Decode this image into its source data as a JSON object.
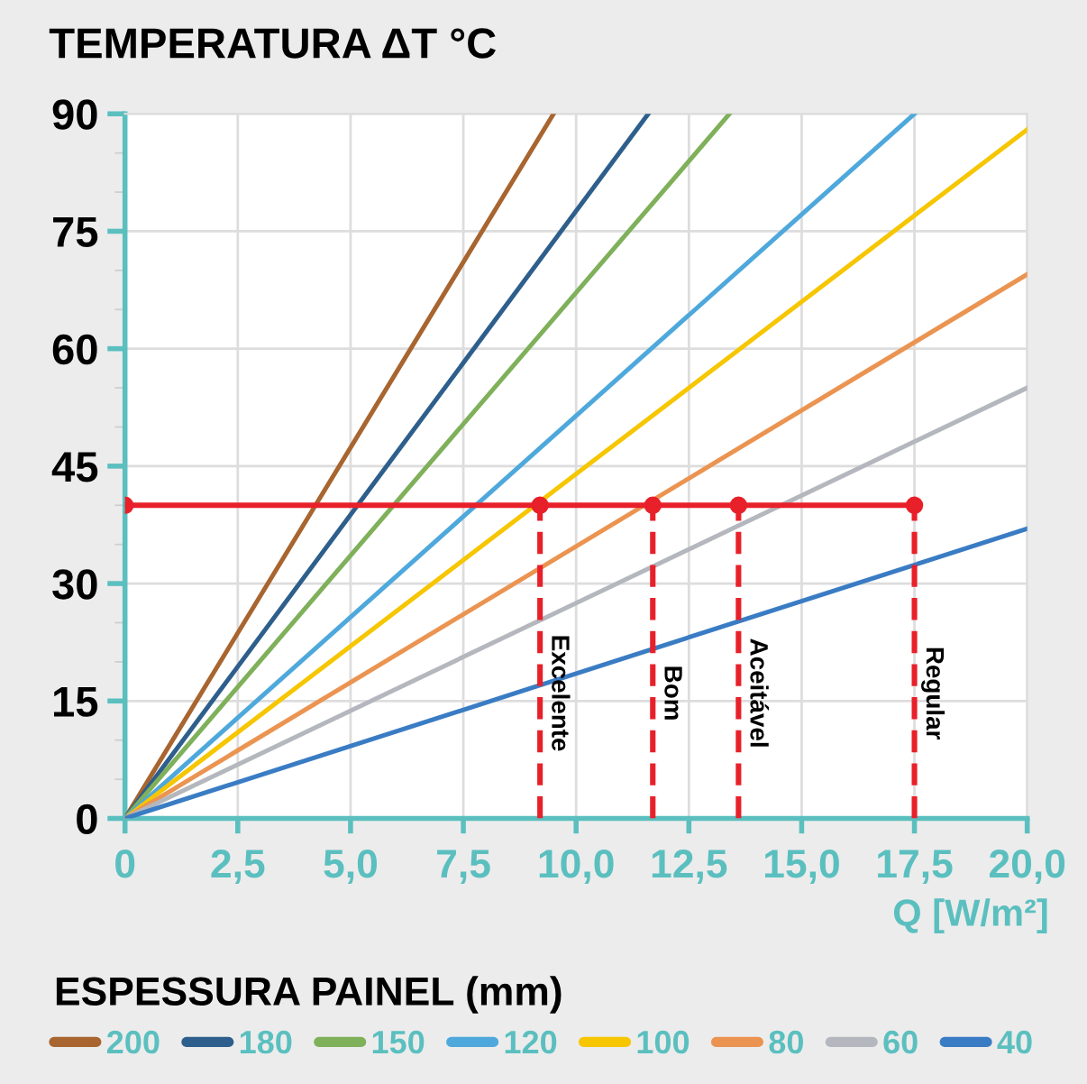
{
  "chart_data": {
    "type": "line",
    "ylabel": "TEMPERATURA ΔT °C",
    "xlabel": "Q [W/m²]",
    "legend_title": "ESPESSURA PAINEL (mm)",
    "xlim": [
      0,
      20
    ],
    "ylim": [
      0,
      90
    ],
    "xticks": [
      {
        "value": 0,
        "label": "0"
      },
      {
        "value": 2.5,
        "label": "2,5"
      },
      {
        "value": 5,
        "label": "5,0"
      },
      {
        "value": 7.5,
        "label": "7,5"
      },
      {
        "value": 10,
        "label": "10,0"
      },
      {
        "value": 12.5,
        "label": "12,5"
      },
      {
        "value": 15,
        "label": "15,0"
      },
      {
        "value": 17.5,
        "label": "17,5"
      },
      {
        "value": 20,
        "label": "20,0"
      }
    ],
    "yticks": [
      0,
      15,
      30,
      45,
      60,
      75,
      90
    ],
    "grid": true,
    "legend": "bottom",
    "marker": "none",
    "line_style": "solid",
    "series": [
      {
        "name": "200",
        "color": "#a8652f",
        "x": [
          0,
          9.5
        ],
        "values": [
          0,
          90
        ]
      },
      {
        "name": "180",
        "color": "#2e5f8c",
        "x": [
          0,
          11.6
        ],
        "values": [
          0,
          90
        ]
      },
      {
        "name": "150",
        "color": "#7fb05a",
        "x": [
          0,
          13.4
        ],
        "values": [
          0,
          90
        ]
      },
      {
        "name": "120",
        "color": "#4ea8dc",
        "x": [
          0,
          17.5
        ],
        "values": [
          0,
          90
        ]
      },
      {
        "name": "100",
        "color": "#f6c600",
        "x": [
          0,
          20
        ],
        "values": [
          0,
          88
        ]
      },
      {
        "name": "80",
        "color": "#eb9451",
        "x": [
          0,
          20
        ],
        "values": [
          0,
          69.5
        ]
      },
      {
        "name": "60",
        "color": "#b4b7bd",
        "x": [
          0,
          20
        ],
        "values": [
          0,
          55
        ]
      },
      {
        "name": "40",
        "color": "#3a7cc4",
        "x": [
          0,
          20
        ],
        "values": [
          0,
          37
        ]
      },
      {
        "color": "#e8202a",
        "x": [
          0,
          9.2,
          11.7,
          13.6,
          17.5
        ],
        "values": [
          40,
          40,
          40,
          40,
          40
        ],
        "marker": "circle"
      }
    ],
    "ref_lines": [
      {
        "axis": "x",
        "value": 9.2,
        "label": "Excelente",
        "color": "#e8202a",
        "line_style": "dashed"
      },
      {
        "axis": "x",
        "value": 11.7,
        "label": "Bom",
        "color": "#e8202a",
        "line_style": "dashed"
      },
      {
        "axis": "x",
        "value": 13.6,
        "label": "Aceitável",
        "color": "#e8202a",
        "line_style": "dashed"
      },
      {
        "axis": "x",
        "value": 17.5,
        "label": "Regular",
        "color": "#e8202a",
        "line_style": "dashed"
      }
    ]
  }
}
